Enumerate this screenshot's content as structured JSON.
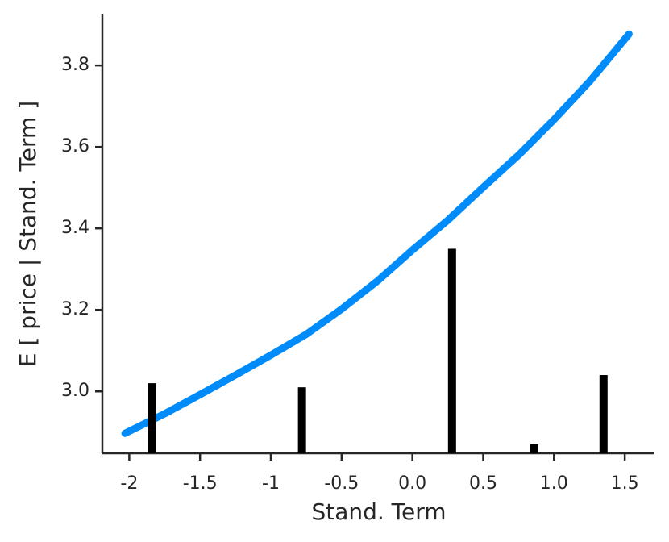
{
  "chart_data": {
    "type": "line",
    "xlabel": "Stand. Term",
    "ylabel": "E [ price | Stand. Term ]",
    "xlim": [
      -2.19,
      1.71
    ],
    "ylim": [
      2.848,
      3.927
    ],
    "xticks": [
      -2.0,
      -1.5,
      -1.0,
      -0.5,
      {
        "value": 0,
        "label": "0.0"
      },
      0.5,
      {
        "value": 1,
        "label": "1.0"
      },
      1.5
    ],
    "yticks": [
      {
        "value": 3,
        "label": "3.0"
      },
      3.2,
      3.4,
      3.6,
      3.8
    ],
    "grid": false,
    "series": [
      {
        "type": "line",
        "color": "#008bfb",
        "x": [
          -2.03,
          -1.75,
          -1.5,
          -1.25,
          -1.0,
          -0.75,
          -0.5,
          -0.25,
          0,
          0.25,
          0.5,
          0.75,
          1.0,
          1.25,
          1.53
        ],
        "values": [
          2.897,
          2.945,
          2.992,
          3.04,
          3.089,
          3.14,
          3.202,
          3.27,
          3.347,
          3.42,
          3.501,
          3.58,
          3.667,
          3.76,
          3.877
        ]
      },
      {
        "type": "bar",
        "color": "#000000",
        "x": [
          -1.84,
          -0.78,
          0.28,
          0.86,
          1.35
        ],
        "values": [
          3.02,
          3.01,
          3.35,
          2.87,
          3.04
        ]
      }
    ]
  }
}
